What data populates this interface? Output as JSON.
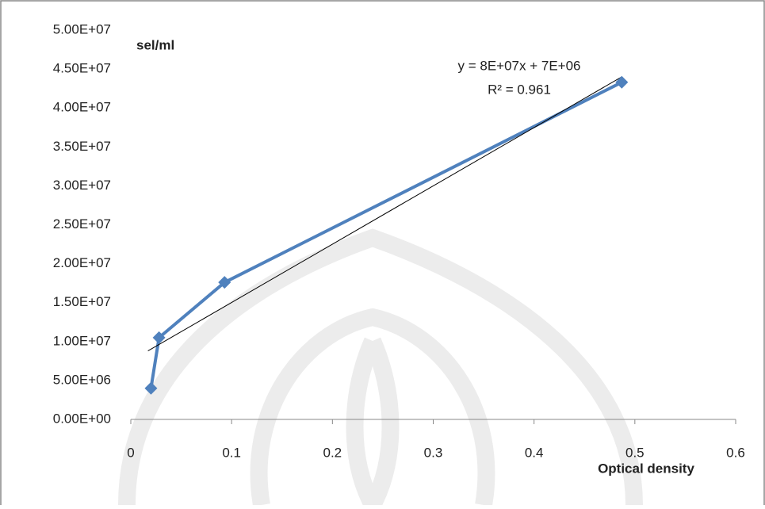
{
  "chart_data": {
    "type": "scatter-line",
    "y_label": "sel/ml",
    "x_label": "Optical density",
    "annotations": [
      "y = 8E+07x + 7E+06",
      "R² = 0.961"
    ],
    "x": [
      0.02,
      0.028,
      0.093,
      0.487
    ],
    "values": [
      4000000,
      10500000,
      17600000,
      43300000
    ],
    "color": "#4f81bd",
    "trendline": {
      "color": "#000000",
      "x": [
        0.017,
        0.487
      ],
      "values": [
        8800000,
        44000000
      ]
    },
    "xlim": [
      0,
      0.6
    ],
    "xticks": [
      0,
      0.1,
      0.2,
      0.3,
      0.4,
      0.5,
      0.6
    ],
    "ylim": [
      0,
      50000000
    ],
    "yticks": [
      {
        "value": 0,
        "label": "0.00E+00"
      },
      {
        "value": 5000000,
        "label": "5.00E+06"
      },
      {
        "value": 10000000,
        "label": "1.00E+07"
      },
      {
        "value": 15000000,
        "label": "1.50E+07"
      },
      {
        "value": 20000000,
        "label": "2.00E+07"
      },
      {
        "value": 25000000,
        "label": "2.50E+07"
      },
      {
        "value": 30000000,
        "label": "3.00E+07"
      },
      {
        "value": 35000000,
        "label": "3.50E+07"
      },
      {
        "value": 40000000,
        "label": "4.00E+07"
      },
      {
        "value": 45000000,
        "label": "4.50E+07"
      },
      {
        "value": 50000000,
        "label": "5.00E+07"
      }
    ],
    "grid": false
  }
}
